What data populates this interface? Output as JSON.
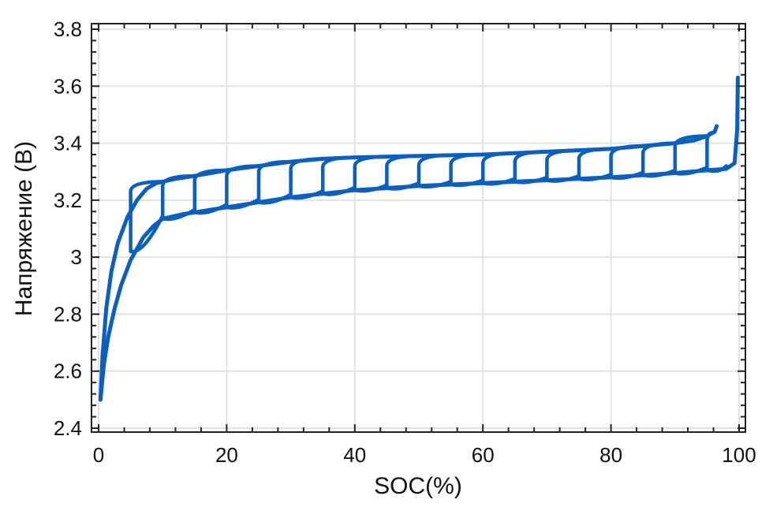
{
  "chart_data": {
    "type": "line",
    "title": "",
    "xlabel": "SOC(%)",
    "ylabel": "Напряжение (В)",
    "xlim": [
      0,
      100
    ],
    "ylim": [
      2.4,
      3.8
    ],
    "xticks": [
      0,
      20,
      40,
      60,
      80,
      100
    ],
    "xtick_labels": [
      "0",
      "20",
      "40",
      "60",
      "80",
      "100"
    ],
    "yticks": [
      2.4,
      2.6,
      2.8,
      3.0,
      3.2,
      3.4,
      3.6,
      3.8
    ],
    "ytick_labels": [
      "2.4",
      "2.6",
      "2.8",
      "3",
      "3.2",
      "3.4",
      "3.6",
      "3.8"
    ],
    "grid": true,
    "line_color": "#0a5fbf",
    "series": [
      {
        "x": [
          0.3,
          0.8,
          1.5,
          2.5,
          3.5,
          5,
          7,
          8.6,
          10,
          13,
          20,
          30,
          40,
          50,
          60,
          70,
          80,
          90,
          95,
          98,
          99.3,
          99.7,
          99.8
        ],
        "y": [
          2.5,
          2.62,
          2.72,
          2.82,
          2.9,
          2.99,
          3.07,
          3.11,
          3.135,
          3.15,
          3.175,
          3.21,
          3.235,
          3.25,
          3.26,
          3.27,
          3.28,
          3.295,
          3.305,
          3.31,
          3.33,
          3.45,
          3.63
        ]
      },
      {
        "x": [
          96.5,
          96.2,
          95,
          93,
          90,
          85,
          80,
          70,
          60,
          50,
          40,
          35,
          30,
          25,
          20,
          15,
          12,
          9,
          7.5,
          6,
          4.5,
          3,
          2,
          1.2,
          0.6,
          0.3
        ],
        "y": [
          3.46,
          3.44,
          3.425,
          3.41,
          3.4,
          3.39,
          3.38,
          3.37,
          3.36,
          3.355,
          3.35,
          3.345,
          3.335,
          3.32,
          3.305,
          3.285,
          3.275,
          3.26,
          3.24,
          3.2,
          3.14,
          3.05,
          2.95,
          2.82,
          2.65,
          2.5
        ]
      }
    ],
    "partial_cycle_start_soc": [
      5,
      10,
      15,
      20,
      25,
      30,
      35,
      40,
      45,
      50,
      55,
      60,
      65,
      70,
      75,
      80,
      85,
      90,
      95
    ]
  }
}
